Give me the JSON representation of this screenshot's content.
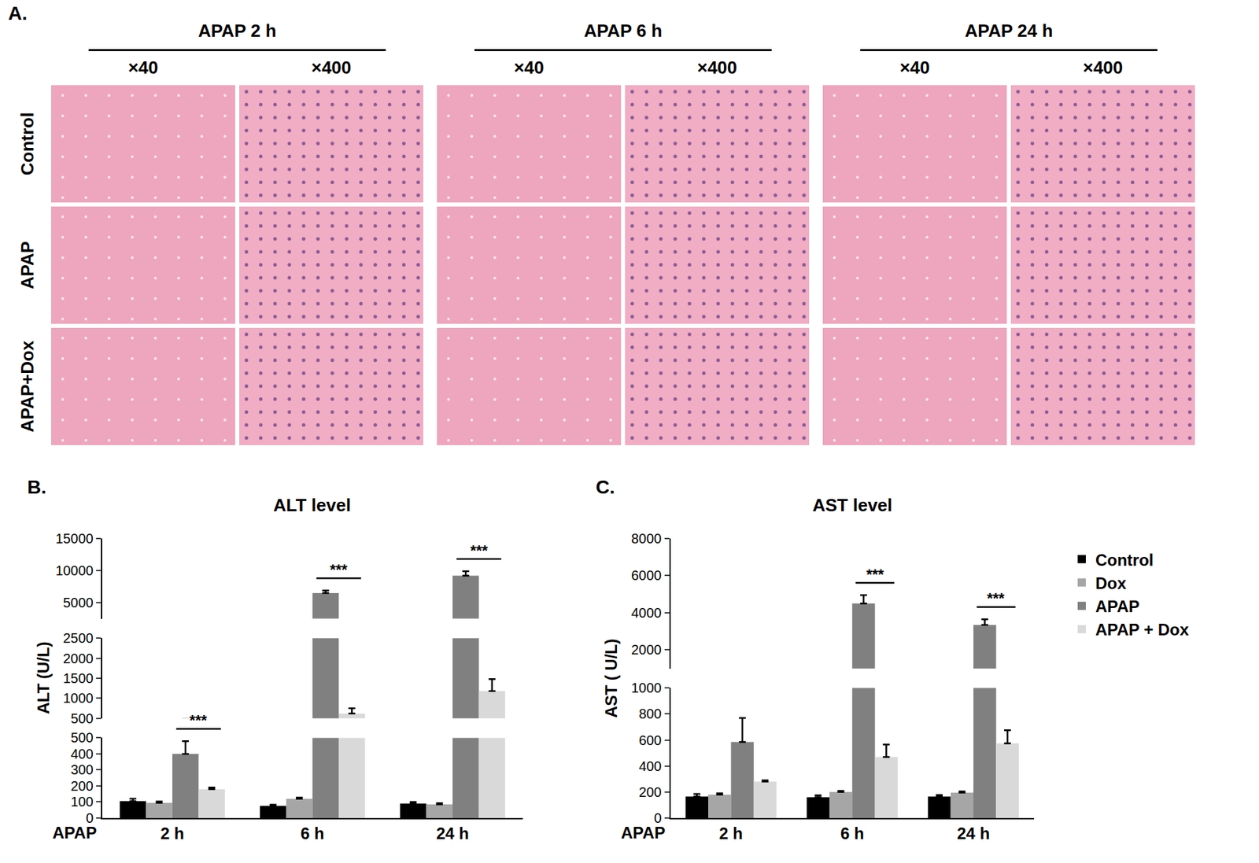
{
  "panel_a": {
    "letter": "A.",
    "groups": [
      "APAP 2 h",
      "APAP 6 h",
      "APAP 24 h"
    ],
    "magnifications": [
      "×40",
      "×400"
    ],
    "rows": [
      "Control",
      "APAP",
      "APAP+Dox"
    ]
  },
  "chart_data": [
    {
      "type": "bar",
      "letter": "B.",
      "title": "ALT level",
      "ylabel": "ALT (U/L)",
      "xlabel": "APAP",
      "categories": [
        "2 h",
        "6 h",
        "24 h"
      ],
      "series": [
        {
          "name": "Control",
          "color": "#000000",
          "values": [
            105,
            75,
            90
          ],
          "errors": [
            15,
            8,
            10
          ]
        },
        {
          "name": "Dox",
          "color": "#a6a6a6",
          "values": [
            95,
            120,
            85
          ],
          "errors": [
            8,
            8,
            8
          ]
        },
        {
          "name": "APAP",
          "color": "#808080",
          "values": [
            400,
            6500,
            9200
          ],
          "errors": [
            80,
            400,
            700
          ]
        },
        {
          "name": "APAP + Dox",
          "color": "#d9d9d9",
          "values": [
            180,
            620,
            1180
          ],
          "errors": [
            10,
            130,
            300
          ]
        }
      ],
      "y_segments": [
        {
          "ylim": [
            0,
            500
          ],
          "yticks": [
            0,
            100,
            200,
            300,
            400,
            500
          ]
        },
        {
          "ylim": [
            500,
            2500
          ],
          "yticks": [
            500,
            1000,
            1500,
            2000,
            2500
          ]
        },
        {
          "ylim": [
            2500,
            15000
          ],
          "yticks": [
            5000,
            10000,
            15000
          ]
        }
      ],
      "significance": [
        {
          "category": "2 h",
          "between": [
            "APAP",
            "APAP + Dox"
          ],
          "label": "***"
        },
        {
          "category": "6 h",
          "between": [
            "APAP",
            "APAP + Dox"
          ],
          "label": "***"
        },
        {
          "category": "24 h",
          "between": [
            "APAP",
            "APAP + Dox"
          ],
          "label": "***"
        }
      ],
      "grid": false
    },
    {
      "type": "bar",
      "letter": "C.",
      "title": "AST level",
      "ylabel": "AST ( U/L)",
      "xlabel": "APAP",
      "categories": [
        "2 h",
        "6 h",
        "24 h"
      ],
      "series": [
        {
          "name": "Control",
          "color": "#000000",
          "values": [
            165,
            160,
            165
          ],
          "errors": [
            20,
            15,
            12
          ]
        },
        {
          "name": "Dox",
          "color": "#a6a6a6",
          "values": [
            180,
            200,
            195
          ],
          "errors": [
            10,
            8,
            10
          ]
        },
        {
          "name": "APAP",
          "color": "#808080",
          "values": [
            585,
            4500,
            3350
          ],
          "errors": [
            185,
            450,
            300
          ]
        },
        {
          "name": "APAP + Dox",
          "color": "#d9d9d9",
          "values": [
            280,
            470,
            575
          ],
          "errors": [
            10,
            95,
            100
          ]
        }
      ],
      "y_segments": [
        {
          "ylim": [
            0,
            1000
          ],
          "yticks": [
            0,
            200,
            400,
            600,
            800,
            1000
          ]
        },
        {
          "ylim": [
            1000,
            8000
          ],
          "yticks": [
            2000,
            4000,
            6000,
            8000
          ]
        }
      ],
      "significance": [
        {
          "category": "6 h",
          "between": [
            "APAP",
            "APAP + Dox"
          ],
          "label": "***"
        },
        {
          "category": "24 h",
          "between": [
            "APAP",
            "APAP + Dox"
          ],
          "label": "***"
        }
      ],
      "grid": false,
      "legend": "right"
    }
  ]
}
